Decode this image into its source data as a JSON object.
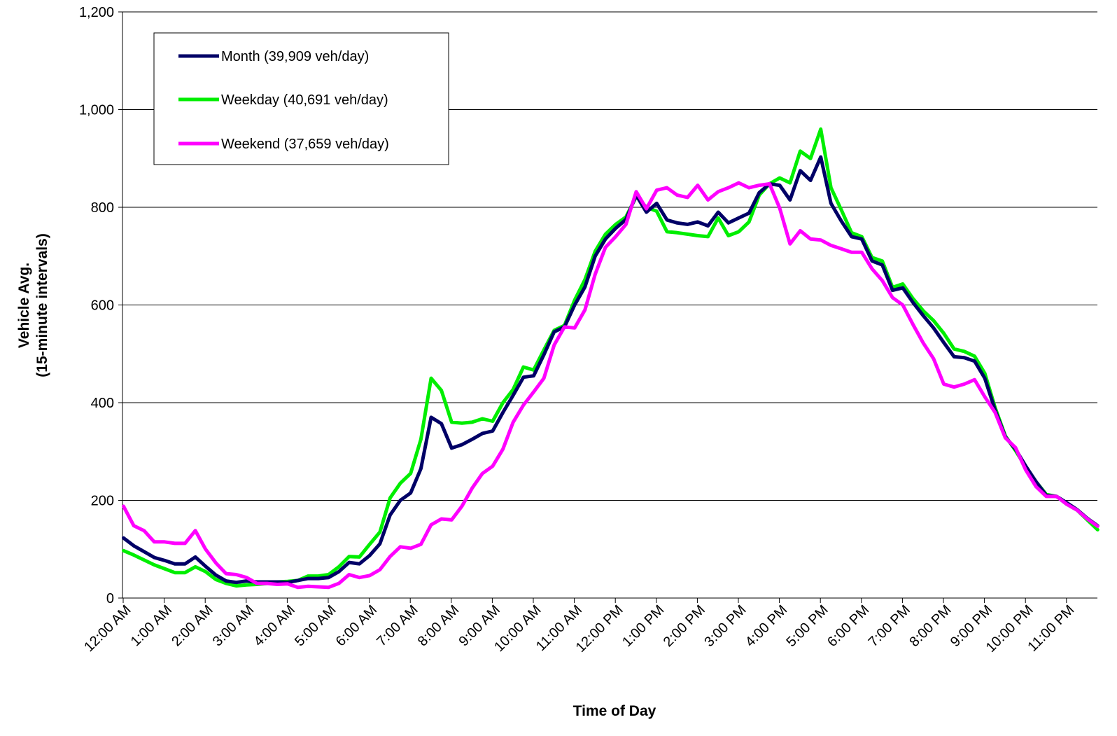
{
  "chart_data": {
    "type": "line",
    "title": "",
    "xlabel": "Time of Day",
    "ylabel_line1": "Vehicle Avg.",
    "ylabel_line2": "(15-minute intervals)",
    "ylim": [
      0,
      1200
    ],
    "yticks": [
      0,
      200,
      400,
      600,
      800,
      1000,
      1200
    ],
    "ytick_labels": [
      "0",
      "200",
      "400",
      "600",
      "800",
      "1,000",
      "1,200"
    ],
    "xtick_labels": [
      "12:00 AM",
      "1:00 AM",
      "2:00 AM",
      "3:00 AM",
      "4:00 AM",
      "5:00 AM",
      "6:00 AM",
      "7:00 AM",
      "8:00 AM",
      "9:00 AM",
      "10:00 AM",
      "11:00 AM",
      "12:00 PM",
      "1:00 PM",
      "2:00 PM",
      "3:00 PM",
      "4:00 PM",
      "5:00 PM",
      "6:00 PM",
      "7:00 PM",
      "8:00 PM",
      "9:00 PM",
      "10:00 PM",
      "11:00 PM"
    ],
    "intervals_per_hour": 4,
    "grid": "horizontal",
    "legend_position": "top-left",
    "series": [
      {
        "name": "Month (39,909 veh/day)",
        "color": "#000066",
        "values": [
          123,
          107,
          95,
          83,
          77,
          70,
          70,
          84,
          65,
          47,
          35,
          32,
          35,
          33,
          33,
          33,
          32,
          36,
          40,
          40,
          42,
          54,
          73,
          70,
          87,
          111,
          170,
          200,
          215,
          265,
          370,
          357,
          307,
          314,
          325,
          337,
          342,
          380,
          415,
          452,
          455,
          498,
          545,
          555,
          600,
          637,
          700,
          735,
          757,
          775,
          825,
          790,
          808,
          774,
          768,
          765,
          770,
          762,
          790,
          768,
          778,
          788,
          830,
          848,
          845,
          815,
          875,
          855,
          903,
          808,
          772,
          740,
          735,
          690,
          682,
          630,
          635,
          605,
          578,
          553,
          523,
          494,
          492,
          485,
          450,
          385,
          330,
          305,
          270,
          238,
          210,
          208,
          195,
          181,
          163,
          148
        ]
      },
      {
        "name": "Weekday (40,691 veh/day)",
        "color": "#00ee00",
        "values": [
          97,
          88,
          78,
          68,
          60,
          52,
          52,
          64,
          54,
          38,
          30,
          25,
          27,
          28,
          30,
          33,
          34,
          36,
          45,
          45,
          48,
          64,
          85,
          84,
          110,
          135,
          205,
          235,
          255,
          325,
          450,
          425,
          360,
          358,
          360,
          367,
          362,
          400,
          427,
          473,
          467,
          508,
          548,
          558,
          610,
          652,
          710,
          745,
          765,
          780,
          822,
          800,
          792,
          750,
          748,
          745,
          742,
          740,
          778,
          742,
          750,
          770,
          825,
          848,
          860,
          850,
          915,
          900,
          960,
          840,
          795,
          748,
          740,
          697,
          690,
          636,
          643,
          613,
          588,
          568,
          542,
          510,
          505,
          495,
          460,
          390,
          332,
          302,
          268,
          238,
          212,
          208,
          192,
          180,
          160,
          140
        ]
      },
      {
        "name": "Weekend (37,659 veh/day)",
        "color": "#ff00ff",
        "values": [
          188,
          148,
          138,
          115,
          115,
          112,
          112,
          138,
          100,
          72,
          50,
          48,
          42,
          30,
          30,
          28,
          29,
          22,
          24,
          23,
          22,
          30,
          48,
          42,
          46,
          58,
          85,
          105,
          102,
          110,
          150,
          162,
          160,
          188,
          225,
          255,
          270,
          305,
          360,
          395,
          422,
          450,
          518,
          555,
          553,
          590,
          663,
          718,
          740,
          765,
          832,
          797,
          835,
          840,
          825,
          820,
          845,
          815,
          832,
          840,
          850,
          840,
          845,
          848,
          798,
          725,
          752,
          735,
          733,
          722,
          715,
          708,
          708,
          674,
          650,
          615,
          600,
          560,
          522,
          490,
          438,
          432,
          438,
          447,
          412,
          380,
          328,
          308,
          262,
          228,
          208,
          208,
          192,
          180,
          162,
          147
        ]
      }
    ]
  }
}
